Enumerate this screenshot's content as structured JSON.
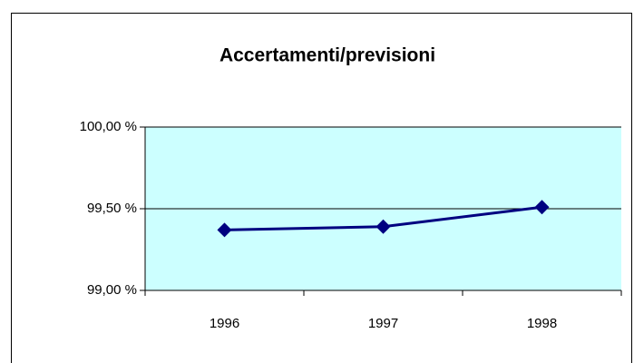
{
  "chart_data": {
    "type": "line",
    "title": "Accertamenti/previsioni",
    "categories": [
      "1996",
      "1997",
      "1998"
    ],
    "series": [
      {
        "name": "Accertamenti/previsioni",
        "color": "#000080",
        "values": [
          99.37,
          99.39,
          99.51
        ]
      }
    ],
    "ylim": [
      99,
      100
    ],
    "yticks": [
      {
        "value": 99,
        "label": "99,00 %"
      },
      {
        "value": 99.5,
        "label": "99,50 %"
      },
      {
        "value": 100,
        "label": "100,00 %"
      }
    ],
    "grid": true,
    "plot_background": "#ccffff"
  }
}
